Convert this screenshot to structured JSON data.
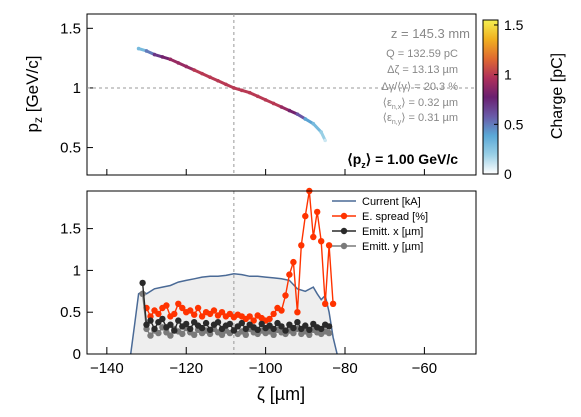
{
  "chart_data": [
    {
      "type": "scatter",
      "panel": "longitudinal-phase-space",
      "ylabel_base": "p",
      "ylabel_sub": "z",
      "ylabel_unit": " [GeV/c]",
      "xlim": [
        -145,
        -47
      ],
      "ylim": [
        0.27,
        1.62
      ],
      "ytick_labels": [
        "0.5",
        "1",
        "1.5"
      ],
      "ytick_values": [
        0.5,
        1,
        1.5
      ],
      "crosshair": {
        "x": -108,
        "y": 1.0
      },
      "colorbar": {
        "label": "Charge [pC]",
        "range": [
          0,
          1.55
        ],
        "tick_labels": [
          "0",
          "0.5",
          "1",
          "1.5"
        ],
        "tick_values": [
          0,
          0.5,
          1,
          1.5
        ],
        "colors": [
          "#ffffff",
          "#9ad0e6",
          "#5aa8d6",
          "#6a5aa8",
          "#6a2070",
          "#b0305a",
          "#e06a30",
          "#f0b020",
          "#f5f050"
        ]
      },
      "x": [
        -132,
        -130,
        -128,
        -126,
        -124,
        -122,
        -120,
        -118,
        -116,
        -114,
        -112,
        -110,
        -108,
        -106,
        -104,
        -102,
        -100,
        -98,
        -96,
        -94,
        -92,
        -90,
        -88,
        -86,
        -85
      ],
      "y": [
        1.33,
        1.31,
        1.28,
        1.26,
        1.24,
        1.21,
        1.18,
        1.15,
        1.12,
        1.09,
        1.06,
        1.03,
        1.0,
        0.98,
        0.96,
        0.93,
        0.9,
        0.87,
        0.84,
        0.81,
        0.78,
        0.74,
        0.7,
        0.63,
        0.56
      ],
      "charge": [
        0.3,
        0.5,
        0.7,
        0.8,
        0.9,
        0.9,
        0.9,
        1.0,
        1.0,
        1.0,
        1.0,
        1.0,
        1.0,
        1.0,
        1.0,
        1.0,
        1.0,
        1.0,
        0.9,
        0.8,
        0.6,
        0.4,
        0.3,
        0.2,
        0.1
      ]
    },
    {
      "type": "line",
      "panel": "slice-parameters",
      "xlabel": "ζ [µm]",
      "xlim": [
        -145,
        -47
      ],
      "ylim": [
        0,
        1.95
      ],
      "xtick_labels": [
        "−140",
        "−120",
        "−100",
        "−80",
        "−60"
      ],
      "xtick_values": [
        -140,
        -120,
        -100,
        -80,
        -60
      ],
      "ytick_labels": [
        "0",
        "0.5",
        "1",
        "1.5"
      ],
      "ytick_values": [
        0,
        0.5,
        1,
        1.5
      ],
      "crosshair_x": -108,
      "series": [
        {
          "name": "Current [kA]",
          "color": "#4a6a96",
          "style": "line-fill",
          "x": [
            -134,
            -133,
            -132,
            -131,
            -130,
            -128,
            -126,
            -124,
            -122,
            -120,
            -118,
            -116,
            -114,
            -112,
            -110,
            -108,
            -106,
            -104,
            -102,
            -100,
            -98,
            -96,
            -94,
            -92,
            -90,
            -88,
            -87,
            -86,
            -85,
            -84,
            -83,
            -82
          ],
          "y": [
            0,
            0.35,
            0.72,
            0.75,
            0.72,
            0.78,
            0.8,
            0.82,
            0.86,
            0.88,
            0.9,
            0.92,
            0.93,
            0.93,
            0.94,
            0.96,
            0.95,
            0.93,
            0.93,
            0.92,
            0.91,
            0.9,
            0.88,
            0.78,
            0.75,
            0.8,
            0.72,
            0.65,
            0.7,
            0.5,
            0.2,
            0
          ]
        },
        {
          "name": "E. spread [%]",
          "color": "#ff3300",
          "style": "line-marker",
          "x": [
            -130,
            -129,
            -128,
            -127,
            -126,
            -125,
            -124,
            -123,
            -122,
            -121,
            -120,
            -119,
            -118,
            -117,
            -116,
            -115,
            -114,
            -113,
            -112,
            -111,
            -110,
            -109,
            -108,
            -107,
            -106,
            -105,
            -104,
            -103,
            -102,
            -101,
            -100,
            -99,
            -98,
            -97,
            -96,
            -95,
            -94,
            -93,
            -92,
            -91,
            -90,
            -89,
            -88,
            -87,
            -86,
            -85,
            -84,
            -83
          ],
          "y": [
            0.55,
            0.45,
            0.52,
            0.48,
            0.55,
            0.58,
            0.45,
            0.48,
            0.6,
            0.55,
            0.5,
            0.52,
            0.47,
            0.55,
            0.45,
            0.5,
            0.48,
            0.52,
            0.46,
            0.5,
            0.45,
            0.48,
            0.44,
            0.47,
            0.45,
            0.42,
            0.45,
            0.4,
            0.46,
            0.43,
            0.4,
            0.42,
            0.48,
            0.55,
            0.52,
            0.7,
            0.95,
            1.1,
            0.5,
            1.3,
            1.65,
            1.95,
            1.4,
            1.7,
            1.35,
            0.6,
            1.3,
            0.6
          ]
        },
        {
          "name": "Emitt. x [µm]",
          "color": "#2a2a2a",
          "style": "line-marker",
          "x": [
            -131,
            -130,
            -129,
            -128,
            -127,
            -126,
            -125,
            -124,
            -123,
            -122,
            -121,
            -120,
            -119,
            -118,
            -117,
            -116,
            -115,
            -114,
            -113,
            -112,
            -111,
            -110,
            -109,
            -108,
            -107,
            -106,
            -105,
            -104,
            -103,
            -102,
            -101,
            -100,
            -99,
            -98,
            -97,
            -96,
            -95,
            -94,
            -93,
            -92,
            -91,
            -90,
            -89,
            -88,
            -87,
            -86,
            -85,
            -84
          ],
          "y": [
            0.85,
            0.35,
            0.4,
            0.3,
            0.38,
            0.42,
            0.32,
            0.35,
            0.28,
            0.4,
            0.33,
            0.36,
            0.3,
            0.38,
            0.34,
            0.31,
            0.37,
            0.29,
            0.35,
            0.38,
            0.3,
            0.34,
            0.36,
            0.28,
            0.33,
            0.37,
            0.3,
            0.35,
            0.32,
            0.29,
            0.36,
            0.31,
            0.34,
            0.3,
            0.37,
            0.33,
            0.28,
            0.35,
            0.31,
            0.38,
            0.3,
            0.34,
            0.29,
            0.36,
            0.32,
            0.3,
            0.35,
            0.33
          ]
        },
        {
          "name": "Emitt. y [µm]",
          "color": "#7a7a7a",
          "style": "line-marker",
          "x": [
            -131,
            -130,
            -129,
            -128,
            -127,
            -126,
            -125,
            -124,
            -123,
            -122,
            -121,
            -120,
            -119,
            -118,
            -117,
            -116,
            -115,
            -114,
            -113,
            -112,
            -111,
            -110,
            -109,
            -108,
            -107,
            -106,
            -105,
            -104,
            -103,
            -102,
            -101,
            -100,
            -99,
            -98,
            -97,
            -96,
            -95,
            -94,
            -93,
            -92,
            -91,
            -90,
            -89,
            -88,
            -87,
            -86,
            -85,
            -84
          ],
          "y": [
            0.72,
            0.3,
            0.22,
            0.28,
            0.25,
            0.32,
            0.26,
            0.22,
            0.3,
            0.27,
            0.24,
            0.31,
            0.26,
            0.23,
            0.29,
            0.25,
            0.28,
            0.24,
            0.3,
            0.26,
            0.23,
            0.28,
            0.25,
            0.29,
            0.24,
            0.27,
            0.23,
            0.3,
            0.26,
            0.24,
            0.28,
            0.25,
            0.27,
            0.23,
            0.29,
            0.26,
            0.24,
            0.28,
            0.25,
            0.3,
            0.24,
            0.27,
            0.23,
            0.29,
            0.26,
            0.24,
            0.27,
            0.25
          ]
        }
      ]
    }
  ],
  "annotations": {
    "z": "z = 145.3 mm",
    "q": "Q = 132.59 pC",
    "dz": "Δζ = 13.13 µm",
    "dg": "Δγ/⟨γ⟩ = 20.3 %",
    "enx_main": "⟨ε",
    "enx_sub": "n,x",
    "enx_rest": "⟩ = 0.32 µm",
    "eny_main": "⟨ε",
    "eny_sub": "n,y",
    "eny_rest": "⟩ = 0.31 µm",
    "pz_main": "⟨p",
    "pz_sub": "z",
    "pz_rest": "⟩ =  1.00 GeV/c"
  }
}
